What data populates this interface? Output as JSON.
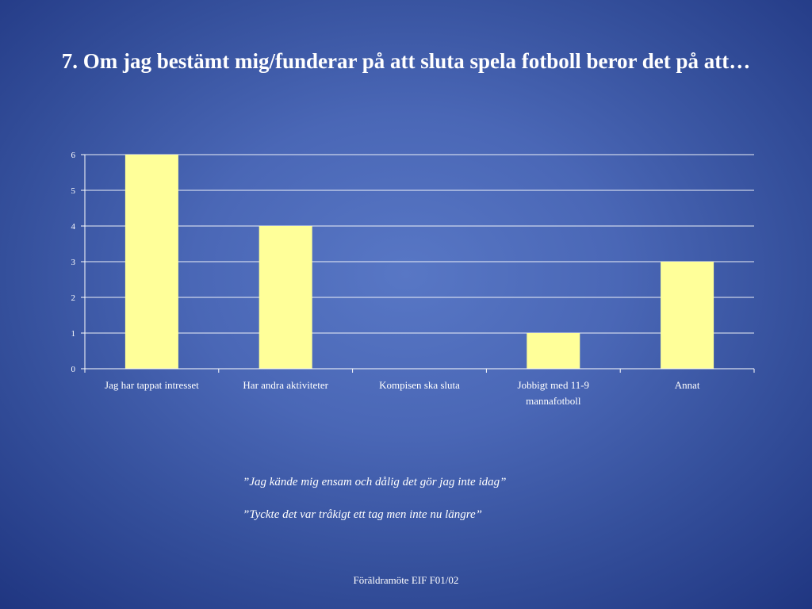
{
  "slide": {
    "title": "7. Om jag bestämt mig/funderar på att sluta spela fotboll beror det på att…",
    "quotes": [
      "”Jag kände mig ensam och dålig det gör jag inte idag”",
      "”Tyckte det var tråkigt ett tag men inte nu längre”"
    ],
    "footer": "Föräldramöte EIF F01/02"
  },
  "chart_data": {
    "type": "bar",
    "categories": [
      "Jag har tappat intresset",
      "Har andra aktiviteter",
      "Kompisen ska sluta",
      "Jobbigt med 11-9 mannafotboll",
      "Annat"
    ],
    "category_label_lines": [
      [
        "Jag har tappat intresset"
      ],
      [
        "Har andra aktiviteter"
      ],
      [
        "Kompisen ska sluta"
      ],
      [
        "Jobbigt med 11-9",
        "mannafotboll"
      ],
      [
        "Annat"
      ]
    ],
    "values": [
      6,
      4,
      0,
      1,
      3
    ],
    "ylim": [
      0,
      6
    ],
    "yticks": [
      0,
      1,
      2,
      3,
      4,
      5,
      6
    ],
    "grid": true,
    "legend": false,
    "bar_color": "#ffff99"
  },
  "colors": {
    "background": "#4a67b6",
    "text": "#ffffff",
    "bar": "#ffff99",
    "gridline": "#ffffff"
  }
}
